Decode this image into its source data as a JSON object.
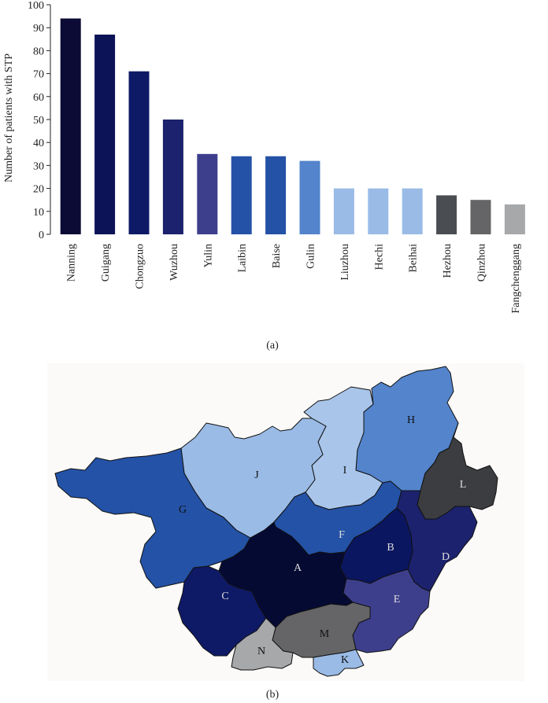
{
  "chart_data": {
    "type": "bar",
    "ylabel": "Number of patients with STP",
    "xlabel": "",
    "ylim": [
      0,
      100
    ],
    "yticks": [
      0,
      10,
      20,
      30,
      40,
      50,
      60,
      70,
      80,
      90,
      100
    ],
    "categories": [
      "Nanning",
      "Guigang",
      "Chongzuo",
      "Wuzhou",
      "Yulin",
      "Laibin",
      "Baise",
      "Gulin",
      "Liuzhou",
      "Hechi",
      "Beihai",
      "Hezhou",
      "Qinzhou",
      "Fangchenggang"
    ],
    "values": [
      94,
      87,
      71,
      50,
      35,
      34,
      34,
      32,
      20,
      20,
      20,
      17,
      15,
      13
    ],
    "colors": [
      "#0b0b35",
      "#0d1357",
      "#0e1a66",
      "#1c226d",
      "#3d3f8c",
      "#2452a6",
      "#2452a6",
      "#5384cc",
      "#9abbe6",
      "#9abbe6",
      "#9abbe6",
      "#4a4e52",
      "#656568",
      "#a6a8aa"
    ],
    "grid": false,
    "legend": "none"
  },
  "captions": {
    "a": "(a)",
    "b": "(b)"
  },
  "map": {
    "background": "#fcfaf8",
    "regions": [
      {
        "label": "A",
        "color": "#050a33",
        "label_color": "#dddddd"
      },
      {
        "label": "B",
        "color": "#0b1660",
        "label_color": "#dddddd"
      },
      {
        "label": "C",
        "color": "#0e1a66",
        "label_color": "#dddddd"
      },
      {
        "label": "D",
        "color": "#1c226d",
        "label_color": "#dddddd"
      },
      {
        "label": "E",
        "color": "#3d3f8c",
        "label_color": "#dddddd"
      },
      {
        "label": "F",
        "color": "#2452a6",
        "label_color": "#dddddd"
      },
      {
        "label": "G",
        "color": "#2452a6",
        "label_color": "#111111"
      },
      {
        "label": "H",
        "color": "#5384cc",
        "label_color": "#111111"
      },
      {
        "label": "I",
        "color": "#a9c5ea",
        "label_color": "#111111"
      },
      {
        "label": "J",
        "color": "#9abbe6",
        "label_color": "#111111"
      },
      {
        "label": "K",
        "color": "#9abbe6",
        "label_color": "#111111"
      },
      {
        "label": "L",
        "color": "#3b3d40",
        "label_color": "#dddddd"
      },
      {
        "label": "M",
        "color": "#656568",
        "label_color": "#111111"
      },
      {
        "label": "N",
        "color": "#a6a8aa",
        "label_color": "#111111"
      }
    ]
  }
}
